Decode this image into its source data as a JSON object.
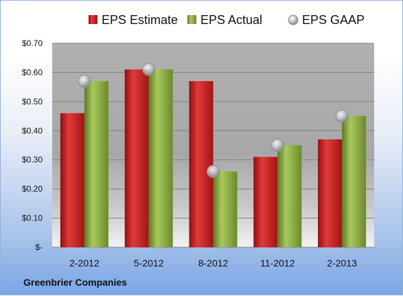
{
  "chart_data": {
    "type": "bar",
    "categories": [
      "2-2012",
      "5-2012",
      "8-2012",
      "11-2012",
      "2-2013"
    ],
    "series": [
      {
        "name": "EPS Estimate",
        "kind": "bar",
        "color": "#cc1f1f",
        "values": [
          0.46,
          0.61,
          0.57,
          0.31,
          0.37
        ]
      },
      {
        "name": "EPS Actual",
        "kind": "bar",
        "color": "#8cb040",
        "values": [
          0.57,
          0.61,
          0.26,
          0.35,
          0.45
        ]
      },
      {
        "name": "EPS GAAP",
        "kind": "marker",
        "color": "#b8bcc4",
        "values": [
          0.57,
          0.61,
          0.26,
          0.35,
          0.45
        ]
      }
    ],
    "yticks": [
      "$-",
      "$0.10",
      "$0.20",
      "$0.30",
      "$0.40",
      "$0.50",
      "$0.60",
      "$0.70"
    ],
    "ylim": [
      0,
      0.7
    ],
    "grid": true,
    "legend_position": "top"
  },
  "footer": {
    "company": "Greenbrier Companies"
  }
}
